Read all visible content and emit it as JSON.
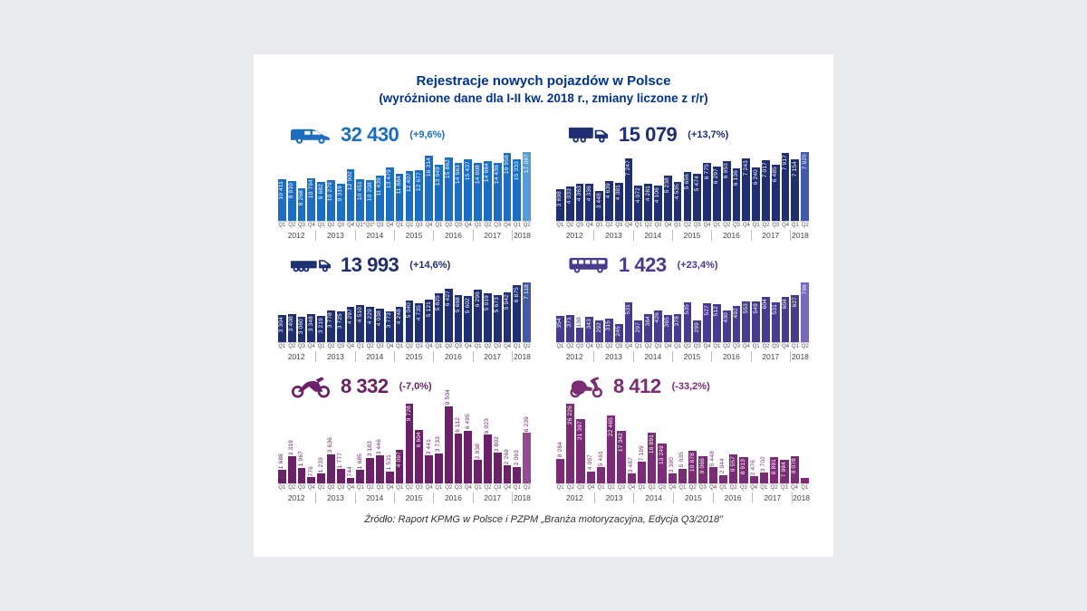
{
  "title_line1": "Rejestracje nowych pojazdów w Polsce",
  "title_line2": "(wyróżnione dane dla I-II kw. 2018 r., zmiany liczone z r/r)",
  "footer": "Źródło: Raport KPMG w Polsce i PZPM „Branża motoryzacyjna, Edycja Q3/2018”",
  "colors": {
    "title": "#00338D",
    "background": "#e9eaec",
    "card": "#ffffff"
  },
  "chart_data": [
    {
      "type": "bar",
      "name": "vans",
      "icon": "van-icon",
      "total": "32 430",
      "change": "(+9,6%)",
      "color": "#1b6ec2",
      "highlight_color": "#549dd8",
      "highlight_last": true,
      "ylim": [
        0,
        17097
      ],
      "categories": [
        "Q1",
        "Q2",
        "Q3",
        "Q4",
        "Q1",
        "Q2",
        "Q3",
        "Q4",
        "Q1*",
        "Q2*",
        "Q3",
        "Q4",
        "Q1",
        "Q2",
        "Q3",
        "Q4",
        "Q1",
        "Q2",
        "Q3",
        "Q4",
        "Q1",
        "Q2",
        "Q3",
        "Q4",
        "Q1",
        "Q2"
      ],
      "labels": [
        "10 411",
        "9 910",
        "8 268",
        "10 794",
        "9 682",
        "10 279",
        "9 319",
        "12 902",
        "10 451",
        "10 208",
        "11 439",
        "13 479",
        "11 884",
        "12 407",
        "12 677",
        "16 314",
        "13 949",
        "15 862",
        "14 563",
        "15 437",
        "14 608",
        "14 984",
        "14 439",
        "16 958",
        "15 333",
        "17 097"
      ],
      "values": [
        10411,
        9910,
        8268,
        10794,
        9682,
        10279,
        9319,
        12902,
        10451,
        10208,
        11439,
        13479,
        11884,
        12407,
        12677,
        16314,
        13949,
        15862,
        14563,
        15437,
        14608,
        14984,
        14439,
        16958,
        15333,
        17097
      ],
      "label_pos": [
        "in",
        "in",
        "in",
        "in",
        "in",
        "in",
        "in",
        "in",
        "in",
        "in",
        "in",
        "in",
        "in",
        "in",
        "in",
        "in",
        "in",
        "in",
        "in",
        "in",
        "in",
        "in",
        "in",
        "in",
        "in",
        "in"
      ],
      "year_groups": [
        {
          "year": "2012",
          "n": 4
        },
        {
          "year": "2013",
          "n": 4
        },
        {
          "year": "2014",
          "n": 4
        },
        {
          "year": "2015",
          "n": 4
        },
        {
          "year": "2016",
          "n": 4
        },
        {
          "year": "2017",
          "n": 4
        },
        {
          "year": "2018",
          "n": 2
        }
      ]
    },
    {
      "type": "bar",
      "name": "trucks",
      "icon": "truck-icon",
      "total": "15 079",
      "change": "(+13,7%)",
      "color": "#1f2f72",
      "highlight_color": "#4459a8",
      "highlight_last": true,
      "ylim": [
        0,
        7925
      ],
      "categories": [
        "Q1",
        "Q2",
        "Q3",
        "Q4",
        "Q1",
        "Q2",
        "Q3",
        "Q4",
        "Q1",
        "Q2",
        "Q3",
        "Q4",
        "Q1",
        "Q2",
        "Q3",
        "Q4",
        "Q1",
        "Q2",
        "Q3",
        "Q4",
        "Q1",
        "Q2",
        "Q3",
        "Q4",
        "Q1",
        "Q2"
      ],
      "labels": [
        "3 698",
        "4 033",
        "4 363",
        "4 336",
        "3 448",
        "4 639",
        "4 381",
        "7 247",
        "4 072",
        "4 281",
        "4 106",
        "5 238",
        "4 535",
        "5 656",
        "5 474",
        "6 775",
        "6 297",
        "6 953",
        "6 136",
        "7 243",
        "6 240",
        "7 017",
        "6 485",
        "7 917",
        "7 154",
        "7 925"
      ],
      "values": [
        3698,
        4033,
        4363,
        4336,
        3448,
        4639,
        4381,
        7247,
        4072,
        4281,
        4106,
        5238,
        4535,
        5656,
        5474,
        6775,
        6297,
        6953,
        6136,
        7243,
        6240,
        7017,
        6485,
        7917,
        7154,
        7925
      ],
      "label_pos": [
        "in",
        "in",
        "in",
        "in",
        "in",
        "in",
        "in",
        "in",
        "in",
        "in",
        "in",
        "in",
        "in",
        "in",
        "in",
        "in",
        "in",
        "in",
        "in",
        "in",
        "in",
        "in",
        "in",
        "in",
        "in",
        "in"
      ],
      "year_groups": [
        {
          "year": "2012",
          "n": 4
        },
        {
          "year": "2013",
          "n": 4
        },
        {
          "year": "2014",
          "n": 4
        },
        {
          "year": "2015",
          "n": 4
        },
        {
          "year": "2016",
          "n": 4
        },
        {
          "year": "2017",
          "n": 4
        },
        {
          "year": "2018",
          "n": 2
        }
      ]
    },
    {
      "type": "bar",
      "name": "trailers",
      "icon": "semitrailer-icon",
      "total": "13 993",
      "change": "(+14,6%)",
      "color": "#1f2f72",
      "highlight_color": "#4459a8",
      "highlight_last": true,
      "ylim": [
        0,
        7118
      ],
      "categories": [
        "Q1",
        "Q2",
        "Q3",
        "Q4",
        "Q1",
        "Q2",
        "Q3",
        "Q4",
        "Q1",
        "Q2",
        "Q3",
        "Q4",
        "Q1",
        "Q2",
        "Q3",
        "Q4",
        "Q1",
        "Q2",
        "Q3",
        "Q4",
        "Q1",
        "Q2",
        "Q3",
        "Q4",
        "Q1",
        "Q2"
      ],
      "labels": [
        "3 304",
        "3 408",
        "3 060",
        "3 348",
        "3 219",
        "3 778",
        "3 725",
        "4 297",
        "4 510",
        "4 229",
        "4 038",
        "3 773",
        "4 248",
        "5 040",
        "4 735",
        "5 121",
        "5 825",
        "6 427",
        "5 668",
        "5 602",
        "6 296",
        "5 919",
        "5 673",
        "5 942",
        "6 875",
        "7 118"
      ],
      "values": [
        3304,
        3408,
        3060,
        3348,
        3219,
        3778,
        3725,
        4297,
        4510,
        4229,
        4038,
        3773,
        4248,
        5040,
        4735,
        5121,
        5825,
        6427,
        5668,
        5602,
        6296,
        5919,
        5673,
        5942,
        6875,
        7118
      ],
      "label_pos": [
        "in",
        "in",
        "in",
        "in",
        "in",
        "in",
        "in",
        "in",
        "in",
        "in",
        "in",
        "in",
        "in",
        "in",
        "in",
        "in",
        "in",
        "in",
        "in",
        "in",
        "in",
        "in",
        "in",
        "in",
        "in",
        "in"
      ],
      "year_groups": [
        {
          "year": "2012",
          "n": 4
        },
        {
          "year": "2013",
          "n": 4
        },
        {
          "year": "2014",
          "n": 4
        },
        {
          "year": "2015",
          "n": 4
        },
        {
          "year": "2016",
          "n": 4
        },
        {
          "year": "2017",
          "n": 4
        },
        {
          "year": "2018",
          "n": 2
        }
      ]
    },
    {
      "type": "bar",
      "name": "buses",
      "icon": "bus-icon",
      "total": "1 423",
      "change": "(+23,4%)",
      "color": "#453c8f",
      "highlight_color": "#746ab8",
      "highlight_last": true,
      "ylim": [
        0,
        796
      ],
      "categories": [
        "Q1",
        "Q2",
        "Q3",
        "Q4",
        "Q1",
        "Q2",
        "Q3",
        "Q4",
        "Q1",
        "Q2",
        "Q3",
        "Q4",
        "Q1",
        "Q2",
        "Q3",
        "Q4",
        "Q1",
        "Q2",
        "Q3",
        "Q4",
        "Q1",
        "Q2",
        "Q3",
        "Q4",
        "Q1",
        "Q2"
      ],
      "labels": [
        "354",
        "371",
        "198",
        "343",
        "292",
        "315",
        "245",
        "531",
        "297",
        "384",
        "426",
        "365",
        "378",
        "535",
        "299",
        "527",
        "512",
        "430",
        "492",
        "553",
        "549",
        "604",
        "531",
        "604",
        "627",
        "796"
      ],
      "values": [
        354,
        371,
        198,
        343,
        292,
        315,
        245,
        531,
        297,
        384,
        426,
        365,
        378,
        535,
        299,
        527,
        512,
        430,
        492,
        553,
        549,
        604,
        531,
        604,
        627,
        796
      ],
      "label_pos": [
        "in",
        "in",
        "up",
        "in",
        "in",
        "in",
        "in",
        "in",
        "in",
        "in",
        "in",
        "in",
        "in",
        "in",
        "in",
        "in",
        "in",
        "in",
        "in",
        "in",
        "in",
        "in",
        "in",
        "in",
        "in",
        "in"
      ],
      "year_groups": [
        {
          "year": "2012",
          "n": 4
        },
        {
          "year": "2013",
          "n": 4
        },
        {
          "year": "2014",
          "n": 4
        },
        {
          "year": "2015",
          "n": 4
        },
        {
          "year": "2016",
          "n": 4
        },
        {
          "year": "2017",
          "n": 4
        },
        {
          "year": "2018",
          "n": 2
        }
      ]
    },
    {
      "type": "bar",
      "name": "motorcycles",
      "icon": "motorcycle-icon",
      "total": "8 332",
      "change": "(-7,0%)",
      "color": "#6b2167",
      "highlight_color": "#944b90",
      "highlight_last": true,
      "ylim": [
        0,
        9728
      ],
      "categories": [
        "Q1",
        "Q2",
        "Q3",
        "Q4",
        "Q1",
        "Q2",
        "Q3",
        "Q4",
        "Q1",
        "Q2",
        "Q3",
        "Q4",
        "Q1",
        "Q2",
        "Q3",
        "Q4",
        "Q1",
        "Q2",
        "Q3",
        "Q4",
        "Q1",
        "Q2",
        "Q3",
        "Q4",
        "Q1",
        "Q2"
      ],
      "labels": [
        "1 688",
        "3 319",
        "1 967",
        "776",
        "1 233",
        "3 636",
        "1 777",
        "744",
        "1 685",
        "3 183",
        "3 446",
        "1 531",
        "4 097",
        "9 728",
        "6 604",
        "3 441",
        "3 733",
        "9 504",
        "6 112",
        "6 495",
        "2 938",
        "6 023",
        "3 802",
        "2 269",
        "2 093",
        "6 239"
      ],
      "values": [
        1688,
        3319,
        1967,
        776,
        1233,
        3636,
        1777,
        744,
        1685,
        3183,
        3446,
        1531,
        4097,
        9728,
        6604,
        3441,
        3733,
        9504,
        6112,
        6495,
        2938,
        6023,
        3802,
        2269,
        2093,
        6239
      ],
      "label_pos": [
        "up",
        "up",
        "up",
        "up",
        "up",
        "up",
        "up",
        "up",
        "up",
        "up",
        "up",
        "up",
        "in",
        "in",
        "in",
        "up",
        "up",
        "up",
        "up",
        "up",
        "up",
        "up",
        "up",
        "up",
        "up",
        "up"
      ],
      "year_groups": [
        {
          "year": "2012",
          "n": 4
        },
        {
          "year": "2013",
          "n": 4
        },
        {
          "year": "2014",
          "n": 4
        },
        {
          "year": "2015",
          "n": 4
        },
        {
          "year": "2016",
          "n": 4
        },
        {
          "year": "2017",
          "n": 4
        },
        {
          "year": "2018",
          "n": 2
        }
      ]
    },
    {
      "type": "bar",
      "name": "scooters",
      "icon": "scooter-icon",
      "total": "8 412",
      "change": "(-33,2%)",
      "color": "#7c2b76",
      "highlight_color": "#7c2b76",
      "highlight_last": false,
      "ylim": [
        0,
        26226
      ],
      "categories": [
        "Q1",
        "Q2",
        "Q3",
        "Q4",
        "Q1",
        "Q2",
        "Q3",
        "Q4",
        "Q1",
        "Q2",
        "Q3",
        "Q4",
        "Q1",
        "Q2",
        "Q3",
        "Q4",
        "Q1",
        "Q2",
        "Q3",
        "Q4",
        "Q1",
        "Q2",
        "Q3",
        "Q4",
        "Q1"
      ],
      "labels": [
        "8 284",
        "26 226",
        "21 397",
        "4 097",
        "5 461",
        "22 465",
        "17 342",
        "3 487",
        "7 199",
        "16 891",
        "13 249",
        "3 380",
        "5 035",
        "10 878",
        "9 066",
        "5 448",
        "2 944",
        "9 557",
        "8 913",
        "2 476",
        "3 702",
        "8 891",
        "7 984",
        "9 078",
        ""
      ],
      "values": [
        8284,
        26226,
        21397,
        4097,
        5461,
        22465,
        17342,
        3487,
        7199,
        16891,
        13249,
        3380,
        5035,
        10878,
        9066,
        5448,
        2944,
        9557,
        8913,
        2476,
        3702,
        8891,
        7984,
        9078,
        2000
      ],
      "label_pos": [
        "up",
        "in",
        "in",
        "up",
        "up",
        "in",
        "in",
        "up",
        "up",
        "in",
        "in",
        "up",
        "up",
        "in",
        "in",
        "up",
        "up",
        "in",
        "in",
        "up",
        "up",
        "in",
        "in",
        "in",
        "up"
      ],
      "year_groups": [
        {
          "year": "2012",
          "n": 4
        },
        {
          "year": "2013",
          "n": 4
        },
        {
          "year": "2014",
          "n": 4
        },
        {
          "year": "2015",
          "n": 4
        },
        {
          "year": "2016",
          "n": 4
        },
        {
          "year": "2017",
          "n": 4
        },
        {
          "year": "2018",
          "n": 1
        }
      ]
    }
  ]
}
